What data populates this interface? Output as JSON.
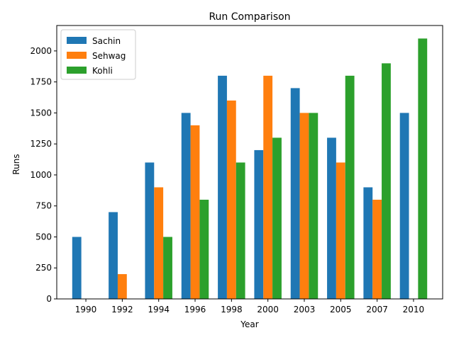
{
  "chart_data": {
    "type": "bar",
    "title": "Run Comparison",
    "xlabel": "Year",
    "ylabel": "Runs",
    "categories": [
      "1990",
      "1992",
      "1994",
      "1996",
      "1998",
      "2000",
      "2003",
      "2005",
      "2007",
      "2010"
    ],
    "series": [
      {
        "name": "Sachin",
        "color": "#1f77b4",
        "values": [
          500,
          700,
          1100,
          1500,
          1800,
          1200,
          1700,
          1300,
          900,
          1500
        ]
      },
      {
        "name": "Sehwag",
        "color": "#ff7f0e",
        "values": [
          0,
          200,
          900,
          1400,
          1600,
          1800,
          1500,
          1100,
          800,
          0
        ]
      },
      {
        "name": "Kohli",
        "color": "#2ca02c",
        "values": [
          0,
          0,
          500,
          800,
          1100,
          1300,
          1500,
          1800,
          1900,
          2100
        ]
      }
    ],
    "ylim": [
      0,
      2205
    ],
    "yticks": [
      0,
      250,
      500,
      750,
      1000,
      1250,
      1500,
      1750,
      2000
    ],
    "grid": false,
    "legend_position": "top-left"
  }
}
